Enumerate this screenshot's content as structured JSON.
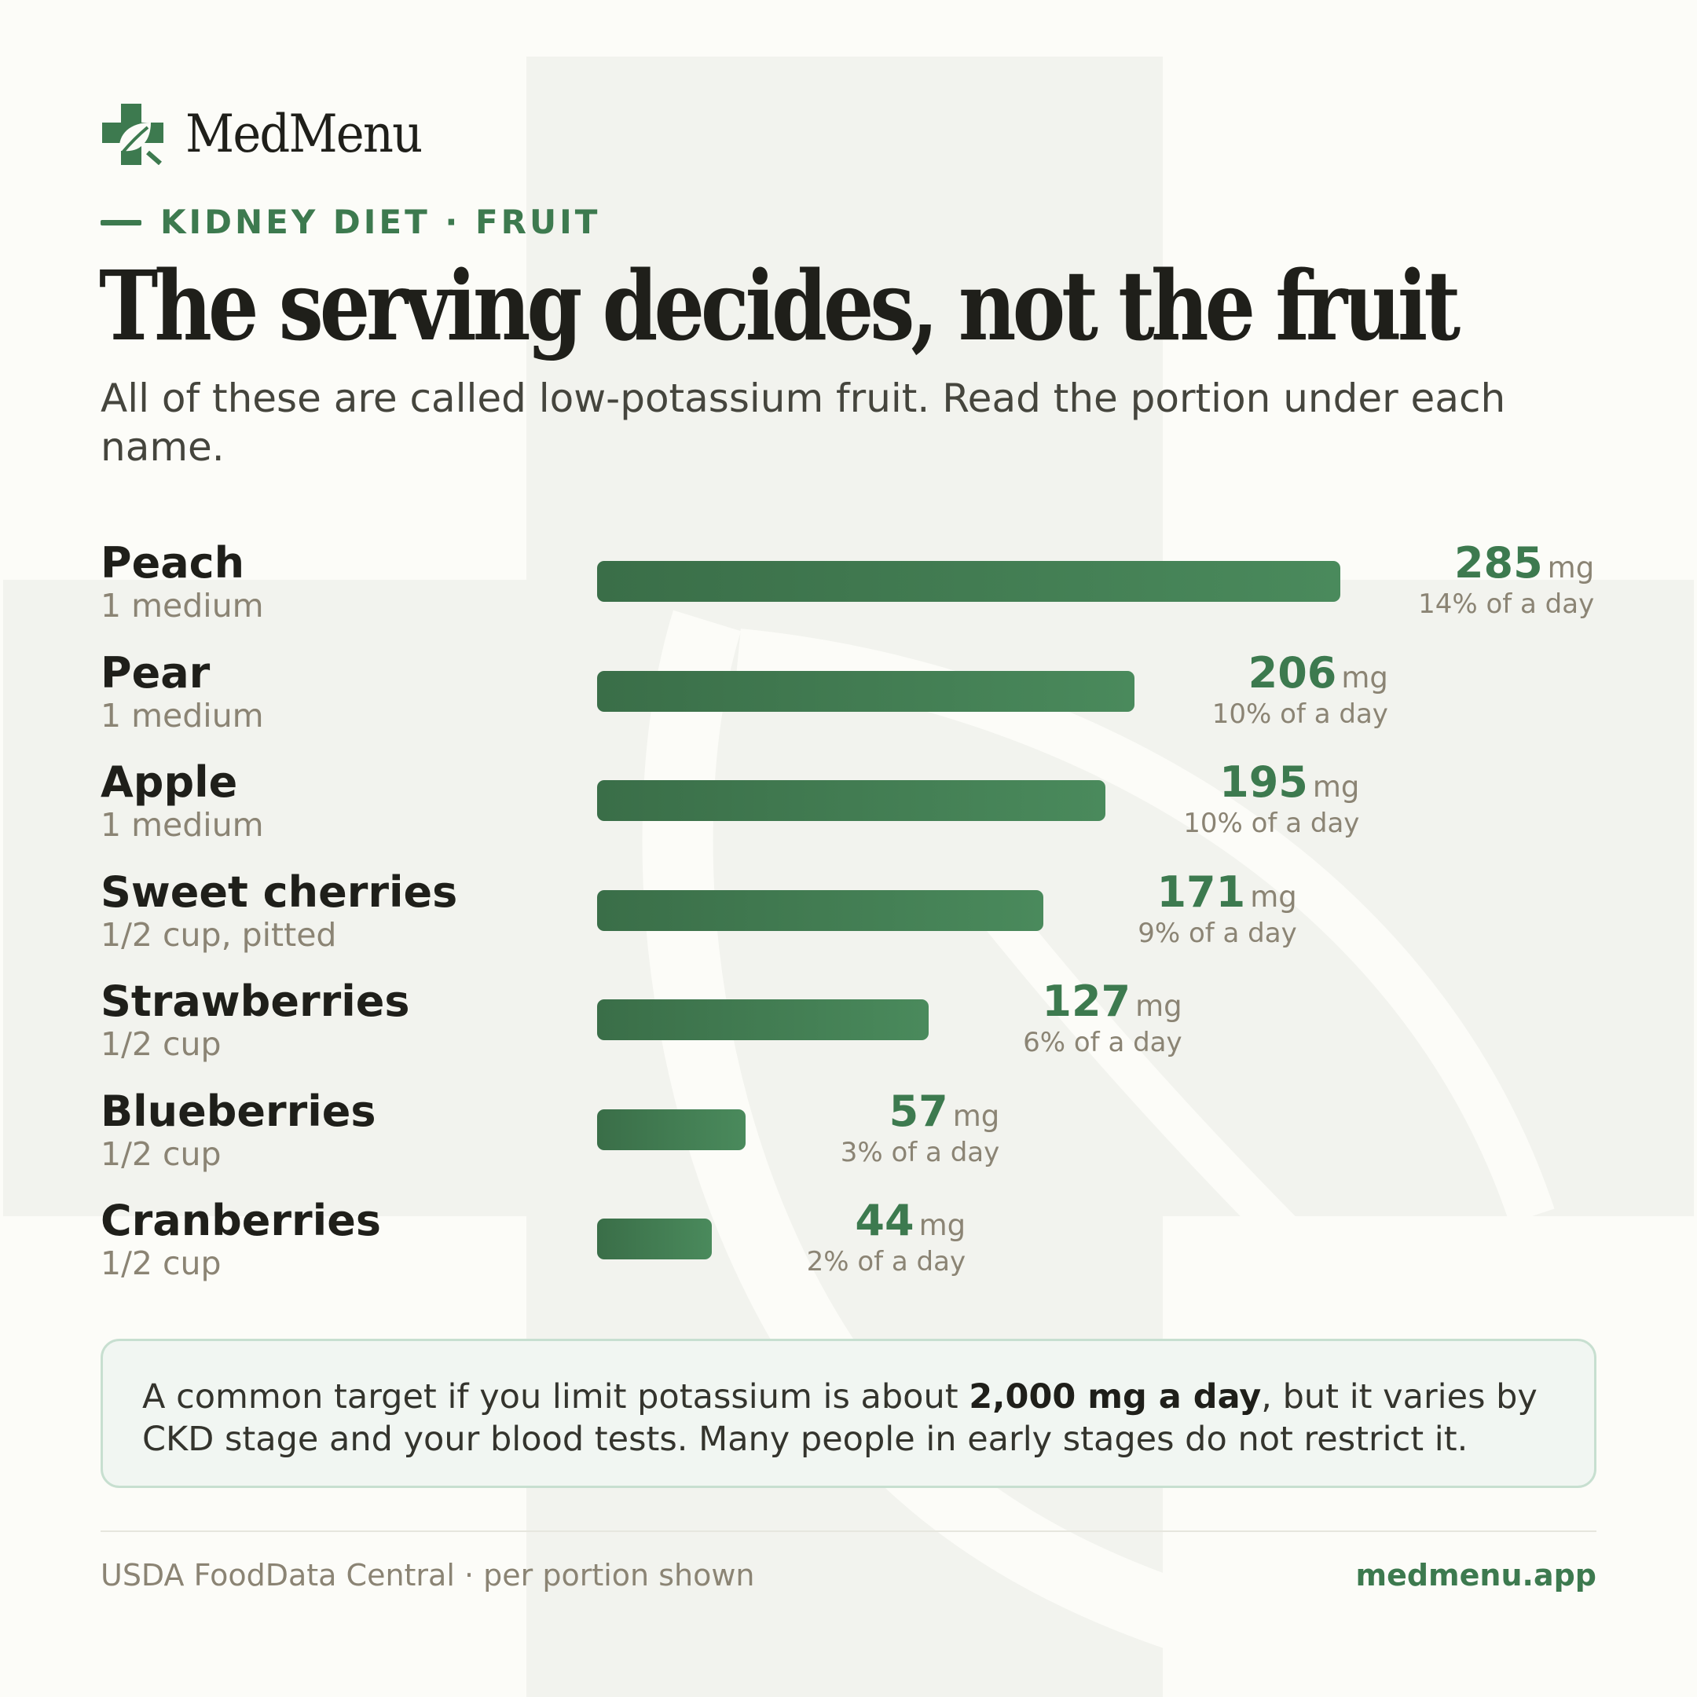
{
  "brand": {
    "name": "MedMenu",
    "color": "#3d7a4f"
  },
  "eyebrow": "KIDNEY DIET · FRUIT",
  "title": "The serving decides, not the fruit",
  "subtitle": "All of these are called low-potassium fruit. Read the portion under each name.",
  "chart_data": {
    "type": "bar",
    "orientation": "horizontal",
    "categories": [
      "Peach",
      "Pear",
      "Apple",
      "Sweet cherries",
      "Strawberries",
      "Blueberries",
      "Cranberries"
    ],
    "portions": [
      "1 medium",
      "1 medium",
      "1 medium",
      "1/2 cup, pitted",
      "1/2 cup",
      "1/2 cup",
      "1/2 cup"
    ],
    "values": [
      285,
      206,
      195,
      171,
      127,
      57,
      44
    ],
    "unit": "mg",
    "percent_labels": [
      "14% of a day",
      "10% of a day",
      "10% of a day",
      "9% of a day",
      "6% of a day",
      "3% of a day",
      "2% of a day"
    ],
    "bar_color": "#3d7a4f",
    "grid": false
  },
  "note": {
    "before": "A common target if you limit potassium is about ",
    "bold": "2,000 mg a day",
    "after": ", but it varies by CKD stage and your blood tests. Many people in early stages do not restrict it."
  },
  "footer": {
    "source": "USDA FoodData Central · per portion shown",
    "site": "medmenu.app"
  }
}
